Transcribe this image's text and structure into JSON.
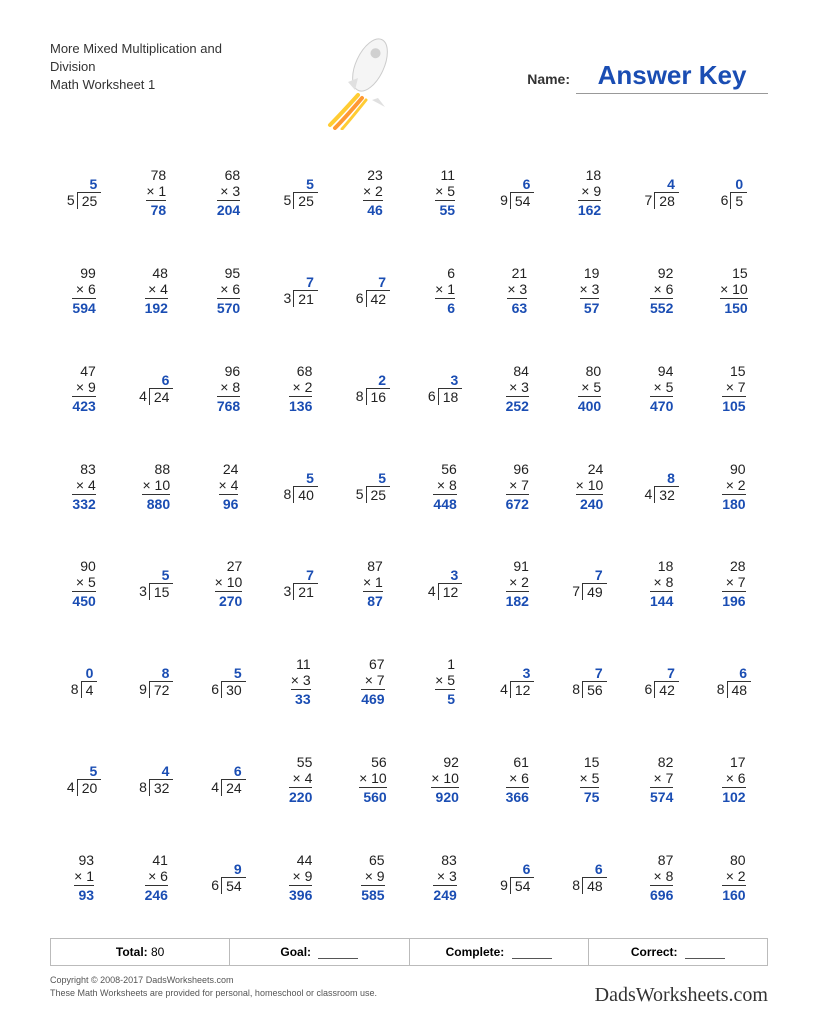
{
  "header": {
    "title_line1": "More Mixed Multiplication and Division",
    "title_line2": "Math Worksheet 1",
    "name_label": "Name:",
    "answer_key": "Answer Key"
  },
  "colors": {
    "answer": "#1a4db3",
    "text": "#222222",
    "rule": "#333333"
  },
  "footer": {
    "total_label": "Total:",
    "total_value": "80",
    "goal_label": "Goal:",
    "complete_label": "Complete:",
    "correct_label": "Correct:"
  },
  "copyright": {
    "line1": "Copyright © 2008-2017 DadsWorksheets.com",
    "line2": "These Math Worksheets are provided for personal, homeschool or classroom use.",
    "brand": "DadsWorksheets.com"
  },
  "problems": [
    [
      {
        "type": "div",
        "divisor": 5,
        "dividend": 25,
        "quotient": 5
      },
      {
        "type": "mult",
        "a": 78,
        "b": 1,
        "ans": 78
      },
      {
        "type": "mult",
        "a": 68,
        "b": 3,
        "ans": 204
      },
      {
        "type": "div",
        "divisor": 5,
        "dividend": 25,
        "quotient": 5
      },
      {
        "type": "mult",
        "a": 23,
        "b": 2,
        "ans": 46
      },
      {
        "type": "mult",
        "a": 11,
        "b": 5,
        "ans": 55
      },
      {
        "type": "div",
        "divisor": 9,
        "dividend": 54,
        "quotient": 6
      },
      {
        "type": "mult",
        "a": 18,
        "b": 9,
        "ans": 162
      },
      {
        "type": "div",
        "divisor": 7,
        "dividend": 28,
        "quotient": 4
      },
      {
        "type": "div",
        "divisor": 6,
        "dividend": 5,
        "quotient": 0
      }
    ],
    [
      {
        "type": "mult",
        "a": 99,
        "b": 6,
        "ans": 594
      },
      {
        "type": "mult",
        "a": 48,
        "b": 4,
        "ans": 192
      },
      {
        "type": "mult",
        "a": 95,
        "b": 6,
        "ans": 570
      },
      {
        "type": "div",
        "divisor": 3,
        "dividend": 21,
        "quotient": 7
      },
      {
        "type": "div",
        "divisor": 6,
        "dividend": 42,
        "quotient": 7
      },
      {
        "type": "mult",
        "a": 6,
        "b": 1,
        "ans": 6
      },
      {
        "type": "mult",
        "a": 21,
        "b": 3,
        "ans": 63
      },
      {
        "type": "mult",
        "a": 19,
        "b": 3,
        "ans": 57
      },
      {
        "type": "mult",
        "a": 92,
        "b": 6,
        "ans": 552
      },
      {
        "type": "mult",
        "a": 15,
        "b": 10,
        "ans": 150
      }
    ],
    [
      {
        "type": "mult",
        "a": 47,
        "b": 9,
        "ans": 423
      },
      {
        "type": "div",
        "divisor": 4,
        "dividend": 24,
        "quotient": 6
      },
      {
        "type": "mult",
        "a": 96,
        "b": 8,
        "ans": 768
      },
      {
        "type": "mult",
        "a": 68,
        "b": 2,
        "ans": 136
      },
      {
        "type": "div",
        "divisor": 8,
        "dividend": 16,
        "quotient": 2
      },
      {
        "type": "div",
        "divisor": 6,
        "dividend": 18,
        "quotient": 3
      },
      {
        "type": "mult",
        "a": 84,
        "b": 3,
        "ans": 252
      },
      {
        "type": "mult",
        "a": 80,
        "b": 5,
        "ans": 400
      },
      {
        "type": "mult",
        "a": 94,
        "b": 5,
        "ans": 470
      },
      {
        "type": "mult",
        "a": 15,
        "b": 7,
        "ans": 105
      }
    ],
    [
      {
        "type": "mult",
        "a": 83,
        "b": 4,
        "ans": 332
      },
      {
        "type": "mult",
        "a": 88,
        "b": 10,
        "ans": 880
      },
      {
        "type": "mult",
        "a": 24,
        "b": 4,
        "ans": 96
      },
      {
        "type": "div",
        "divisor": 8,
        "dividend": 40,
        "quotient": 5
      },
      {
        "type": "div",
        "divisor": 5,
        "dividend": 25,
        "quotient": 5
      },
      {
        "type": "mult",
        "a": 56,
        "b": 8,
        "ans": 448
      },
      {
        "type": "mult",
        "a": 96,
        "b": 7,
        "ans": 672
      },
      {
        "type": "mult",
        "a": 24,
        "b": 10,
        "ans": 240
      },
      {
        "type": "div",
        "divisor": 4,
        "dividend": 32,
        "quotient": 8
      },
      {
        "type": "mult",
        "a": 90,
        "b": 2,
        "ans": 180
      }
    ],
    [
      {
        "type": "mult",
        "a": 90,
        "b": 5,
        "ans": 450
      },
      {
        "type": "div",
        "divisor": 3,
        "dividend": 15,
        "quotient": 5
      },
      {
        "type": "mult",
        "a": 27,
        "b": 10,
        "ans": 270
      },
      {
        "type": "div",
        "divisor": 3,
        "dividend": 21,
        "quotient": 7
      },
      {
        "type": "mult",
        "a": 87,
        "b": 1,
        "ans": 87
      },
      {
        "type": "div",
        "divisor": 4,
        "dividend": 12,
        "quotient": 3
      },
      {
        "type": "mult",
        "a": 91,
        "b": 2,
        "ans": 182
      },
      {
        "type": "div",
        "divisor": 7,
        "dividend": 49,
        "quotient": 7
      },
      {
        "type": "mult",
        "a": 18,
        "b": 8,
        "ans": 144
      },
      {
        "type": "mult",
        "a": 28,
        "b": 7,
        "ans": 196
      }
    ],
    [
      {
        "type": "div",
        "divisor": 8,
        "dividend": 4,
        "quotient": 0
      },
      {
        "type": "div",
        "divisor": 9,
        "dividend": 72,
        "quotient": 8
      },
      {
        "type": "div",
        "divisor": 6,
        "dividend": 30,
        "quotient": 5
      },
      {
        "type": "mult",
        "a": 11,
        "b": 3,
        "ans": 33
      },
      {
        "type": "mult",
        "a": 67,
        "b": 7,
        "ans": 469
      },
      {
        "type": "mult",
        "a": 1,
        "b": 5,
        "ans": 5
      },
      {
        "type": "div",
        "divisor": 4,
        "dividend": 12,
        "quotient": 3
      },
      {
        "type": "div",
        "divisor": 8,
        "dividend": 56,
        "quotient": 7
      },
      {
        "type": "div",
        "divisor": 6,
        "dividend": 42,
        "quotient": 7
      },
      {
        "type": "div",
        "divisor": 8,
        "dividend": 48,
        "quotient": 6
      }
    ],
    [
      {
        "type": "div",
        "divisor": 4,
        "dividend": 20,
        "quotient": 5
      },
      {
        "type": "div",
        "divisor": 8,
        "dividend": 32,
        "quotient": 4
      },
      {
        "type": "div",
        "divisor": 4,
        "dividend": 24,
        "quotient": 6
      },
      {
        "type": "mult",
        "a": 55,
        "b": 4,
        "ans": 220
      },
      {
        "type": "mult",
        "a": 56,
        "b": 10,
        "ans": 560
      },
      {
        "type": "mult",
        "a": 92,
        "b": 10,
        "ans": 920
      },
      {
        "type": "mult",
        "a": 61,
        "b": 6,
        "ans": 366
      },
      {
        "type": "mult",
        "a": 15,
        "b": 5,
        "ans": 75
      },
      {
        "type": "mult",
        "a": 82,
        "b": 7,
        "ans": 574
      },
      {
        "type": "mult",
        "a": 17,
        "b": 6,
        "ans": 102
      }
    ],
    [
      {
        "type": "mult",
        "a": 93,
        "b": 1,
        "ans": 93
      },
      {
        "type": "mult",
        "a": 41,
        "b": 6,
        "ans": 246
      },
      {
        "type": "div",
        "divisor": 6,
        "dividend": 54,
        "quotient": 9
      },
      {
        "type": "mult",
        "a": 44,
        "b": 9,
        "ans": 396
      },
      {
        "type": "mult",
        "a": 65,
        "b": 9,
        "ans": 585
      },
      {
        "type": "mult",
        "a": 83,
        "b": 3,
        "ans": 249
      },
      {
        "type": "div",
        "divisor": 9,
        "dividend": 54,
        "quotient": 6
      },
      {
        "type": "div",
        "divisor": 8,
        "dividend": 48,
        "quotient": 6
      },
      {
        "type": "mult",
        "a": 87,
        "b": 8,
        "ans": 696
      },
      {
        "type": "mult",
        "a": 80,
        "b": 2,
        "ans": 160
      }
    ]
  ]
}
